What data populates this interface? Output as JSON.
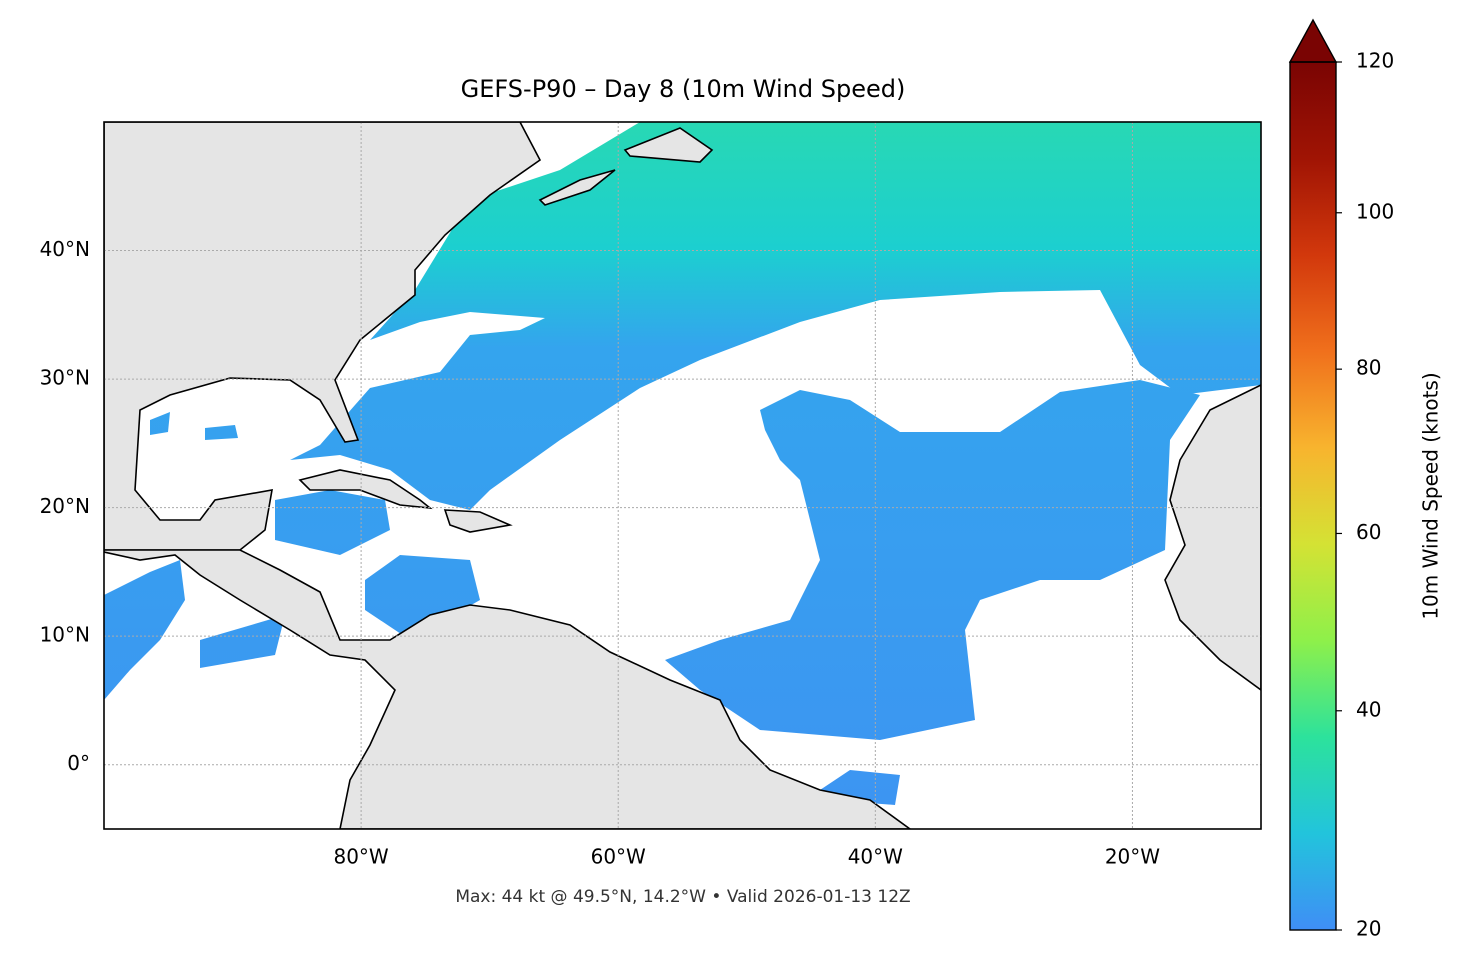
{
  "chart_data": {
    "type": "map",
    "title": "GEFS-P90 – Day 8 (10m Wind Speed)",
    "footer": "Max: 44 kt @ 49.5°N, 14.2°W • Valid 2026-01-13 12Z",
    "xlim": [
      -100,
      -10
    ],
    "ylim": [
      -5,
      50
    ],
    "xticks": [
      {
        "value": -80,
        "label": "80°W"
      },
      {
        "value": -60,
        "label": "60°W"
      },
      {
        "value": -40,
        "label": "40°W"
      },
      {
        "value": -20,
        "label": "20°W"
      }
    ],
    "yticks": [
      {
        "value": 0,
        "label": "0°"
      },
      {
        "value": 10,
        "label": "10°N"
      },
      {
        "value": 20,
        "label": "20°N"
      },
      {
        "value": 30,
        "label": "30°N"
      },
      {
        "value": 40,
        "label": "40°N"
      }
    ],
    "grid": true,
    "colorbar": {
      "label": "10m Wind Speed (knots)",
      "lim": [
        20,
        120
      ],
      "ticks": [
        20,
        40,
        60,
        80,
        100,
        120
      ],
      "norm": "power",
      "gamma": 0.855,
      "extend": "max",
      "colors": [
        "#3f8ef6",
        "#22c4dc",
        "#2ce29c",
        "#8ef04a",
        "#d4e234",
        "#f8b42e",
        "#f0701c",
        "#d2380c",
        "#a01404",
        "#7a0403"
      ]
    }
  }
}
